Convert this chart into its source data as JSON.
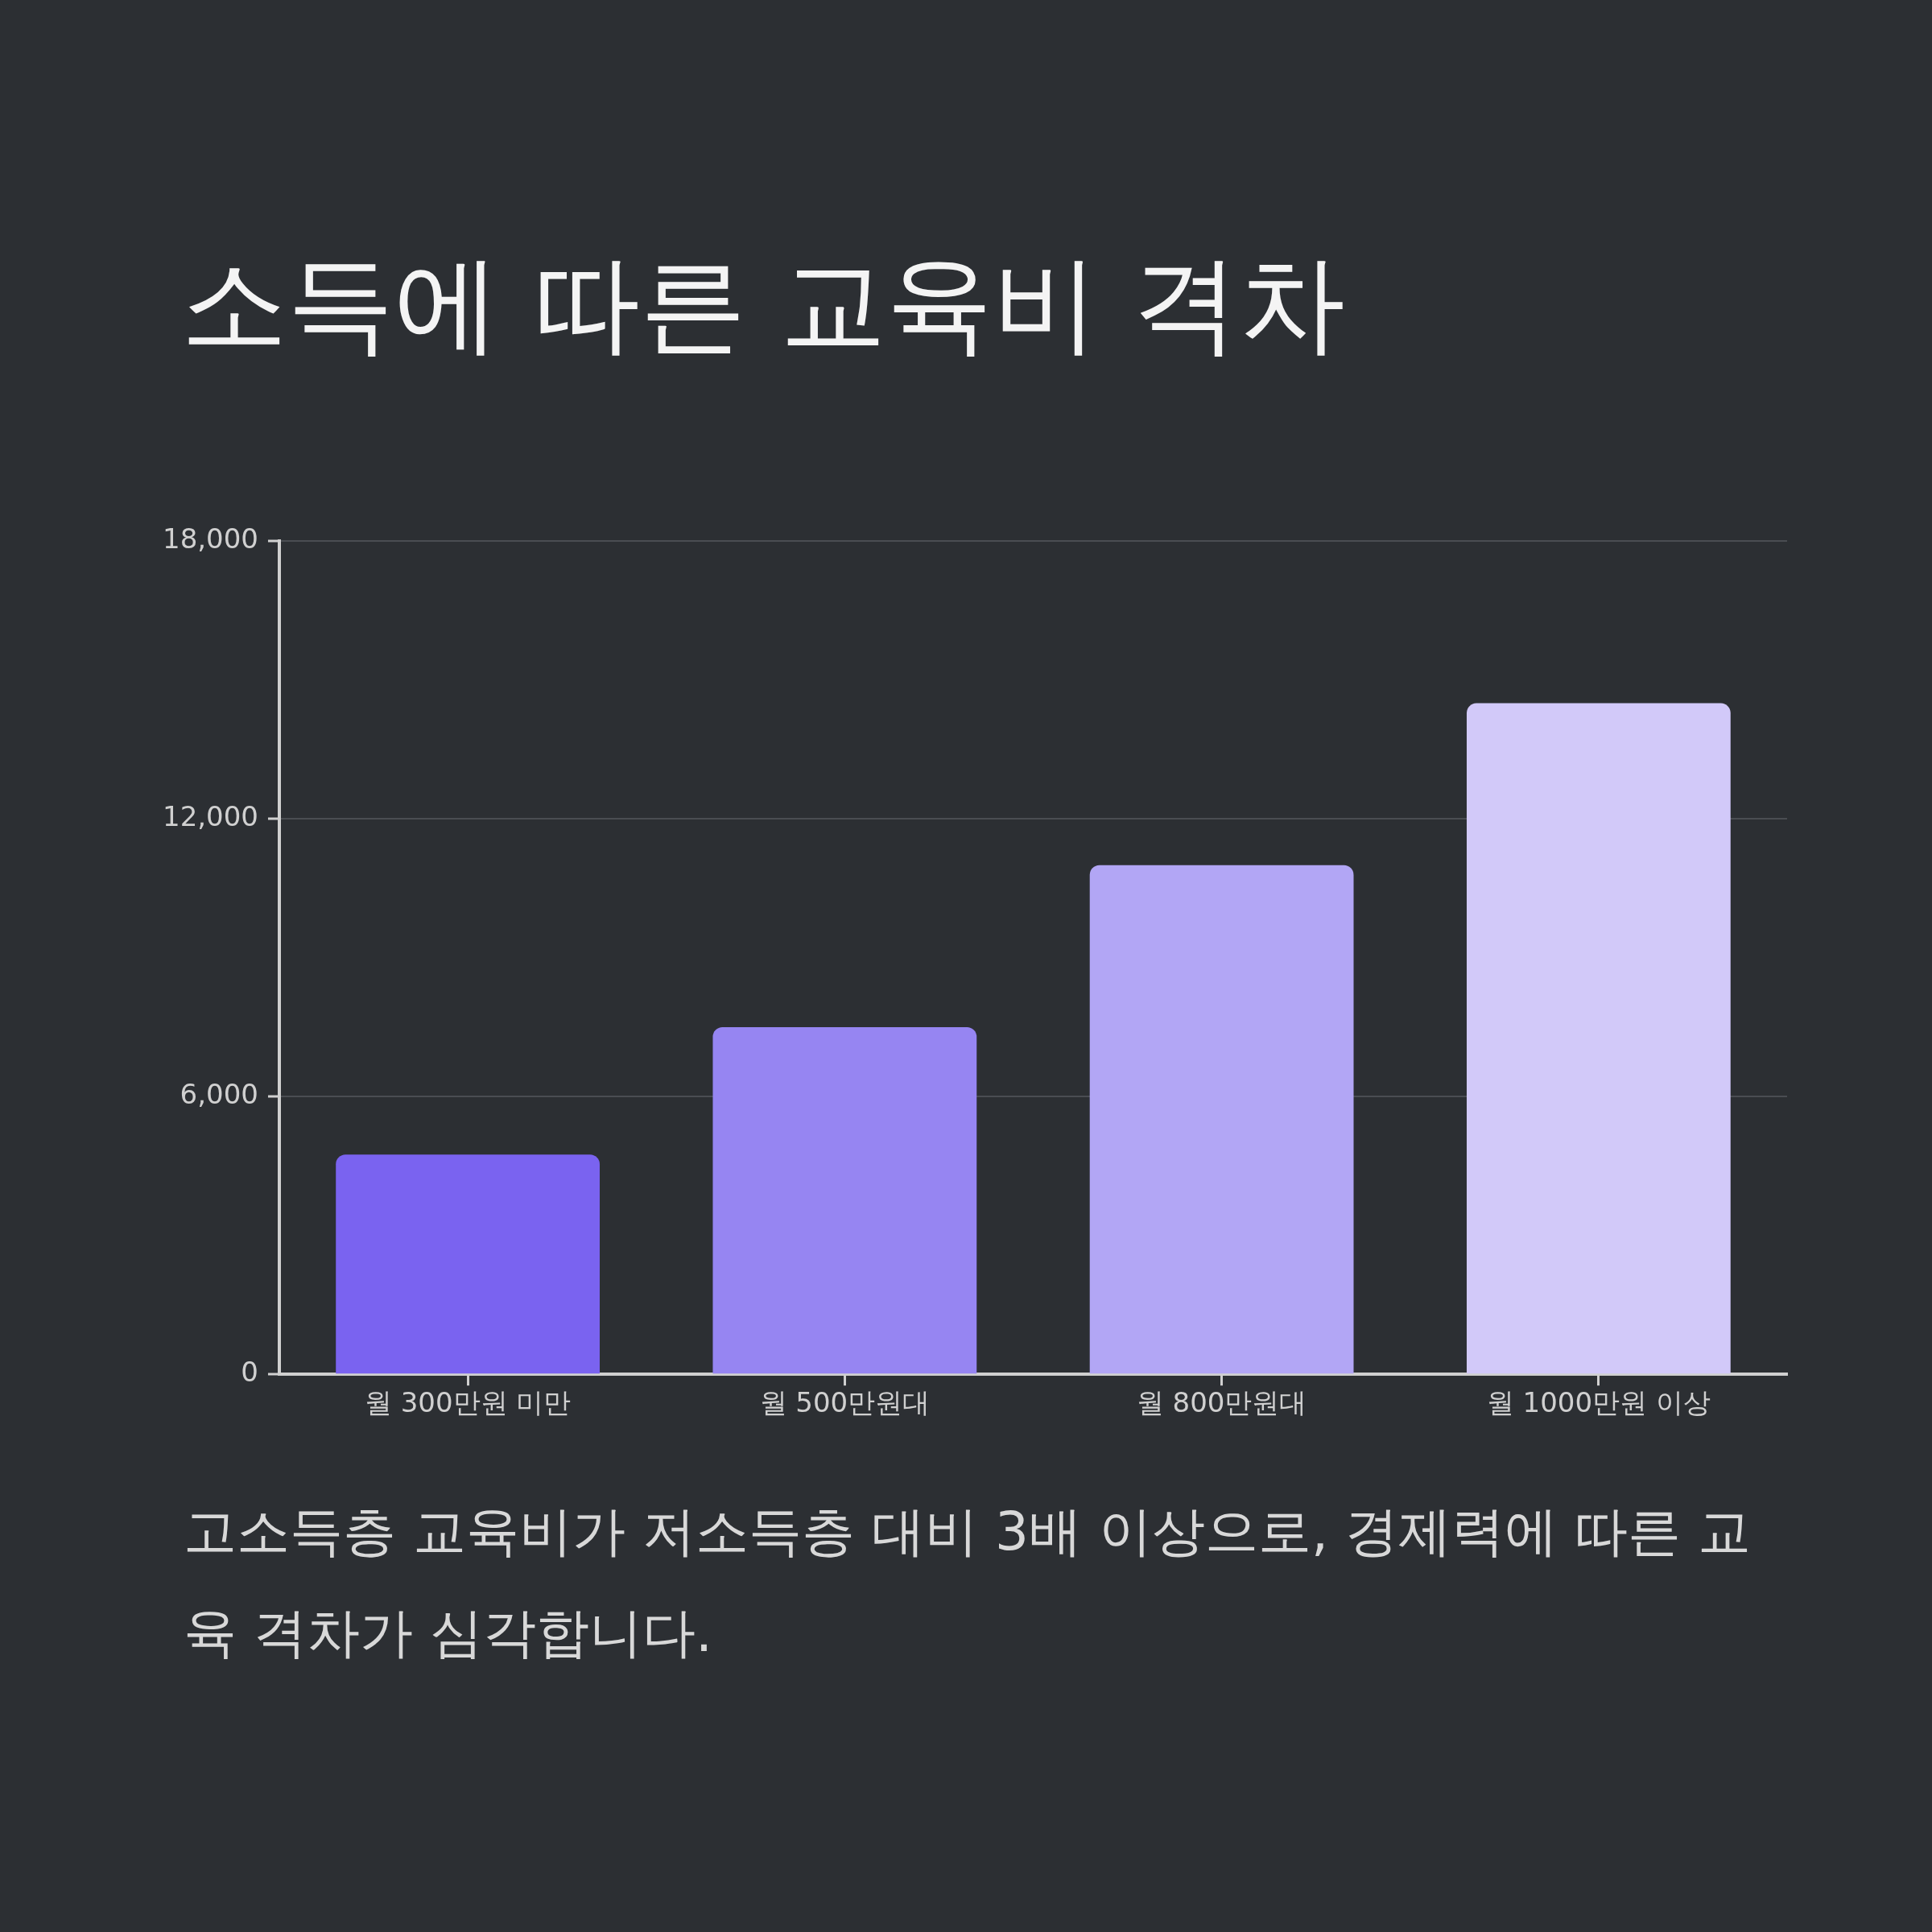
{
  "chart_data": {
    "type": "bar",
    "title": "소득에 따른 교육비 격차",
    "categories": [
      "월 300만원 미만",
      "월 500만원대",
      "월 800만원대",
      "월 1000만원 이상"
    ],
    "values": [
      4750,
      7500,
      11000,
      14500
    ],
    "colors": [
      "#7a63f0",
      "#9685f2",
      "#b2a6f5",
      "#d2c9f9"
    ],
    "ylim": [
      0,
      18000
    ],
    "yticks": [
      {
        "value": 0,
        "label": "0"
      },
      {
        "value": 6000,
        "label": "6,000"
      },
      {
        "value": 12000,
        "label": "12,000"
      },
      {
        "value": 18000,
        "label": "18,000"
      }
    ],
    "grid": "y",
    "annotations": [
      "고소득층 교육비가 저소득층 대비 3배 이상으로, 경제력에 따른 교육 격차가 심각합니다."
    ]
  }
}
